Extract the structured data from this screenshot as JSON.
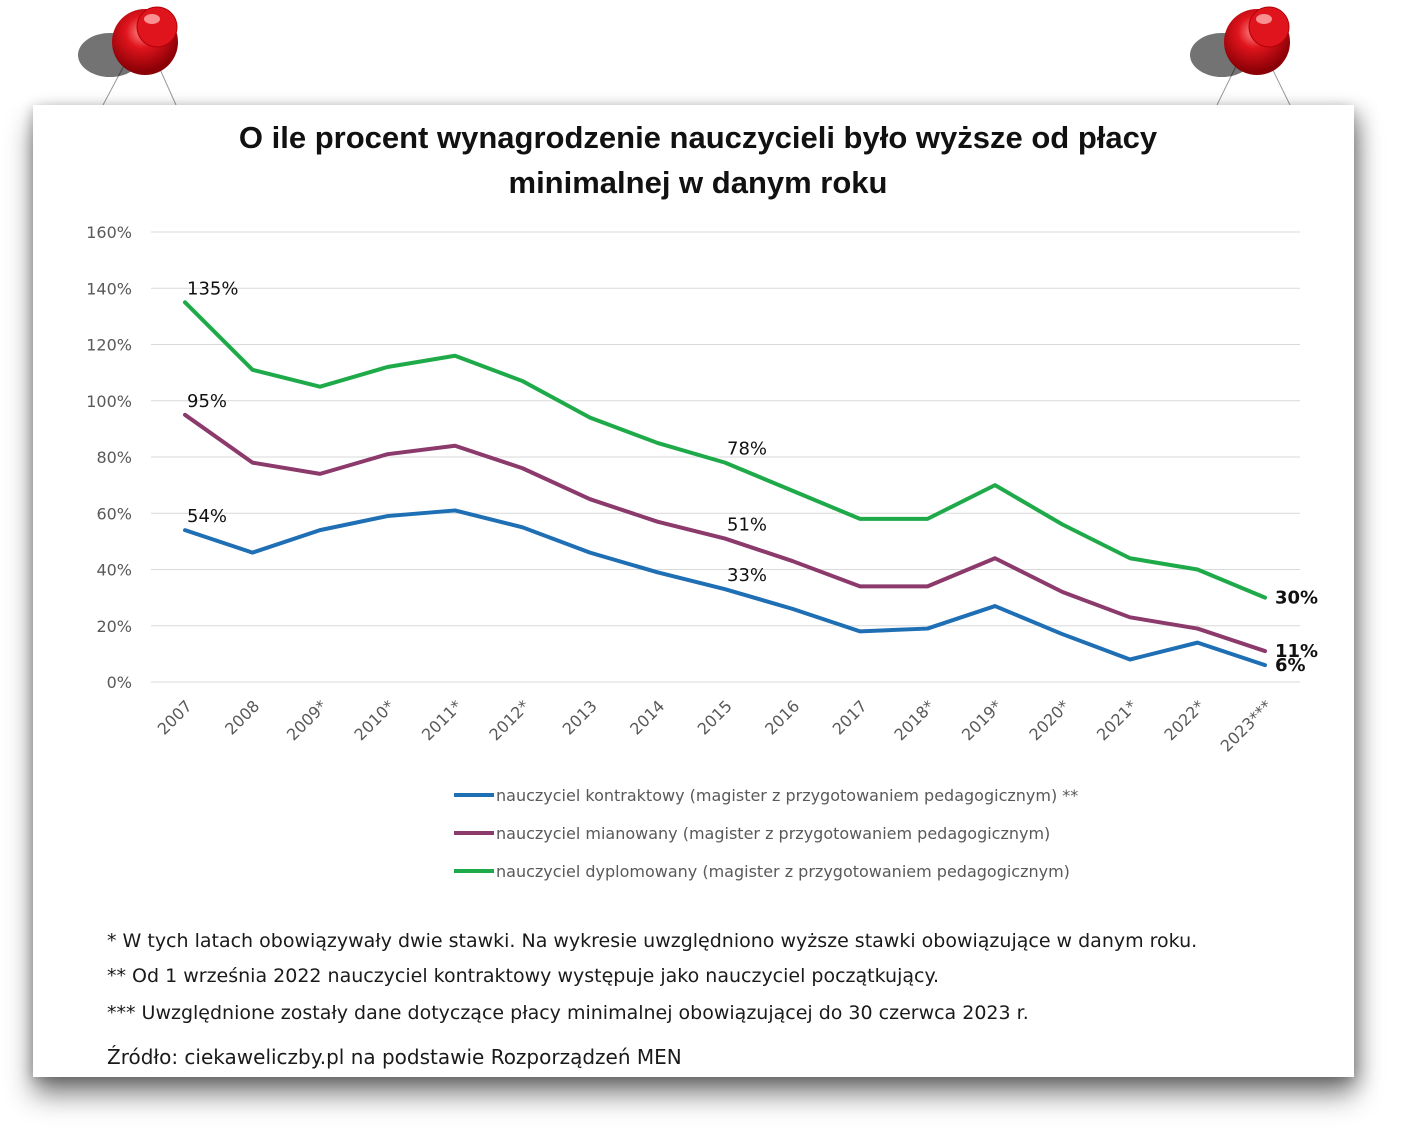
{
  "chart_data": {
    "type": "line",
    "title_lines": [
      "O ile procent wynagrodzenie nauczycieli było wyższe od płacy",
      "minimalnej w danym roku"
    ],
    "categories": [
      "2007",
      "2008",
      "2009*",
      "2010*",
      "2011*",
      "2012*",
      "2013",
      "2014",
      "2015",
      "2016",
      "2017",
      "2018*",
      "2019*",
      "2020*",
      "2021*",
      "2022*",
      "2023***"
    ],
    "y_ticks": [
      "0%",
      "20%",
      "40%",
      "60%",
      "80%",
      "100%",
      "120%",
      "140%",
      "160%"
    ],
    "ylim": [
      0,
      160
    ],
    "grid": true,
    "legend_position": "bottom",
    "series": [
      {
        "name": "nauczyciel kontraktowy (magister z przygotowaniem pedagogicznym) **",
        "color": "#1f6fb5",
        "values": [
          54,
          46,
          54,
          59,
          61,
          55,
          46,
          39,
          33,
          26,
          18,
          19,
          27,
          17,
          8,
          14,
          6
        ]
      },
      {
        "name": "nauczyciel mianowany (magister z przygotowaniem pedagogicznym)",
        "color": "#8b3a6b",
        "values": [
          95,
          78,
          74,
          81,
          84,
          76,
          65,
          57,
          51,
          43,
          34,
          34,
          44,
          32,
          23,
          19,
          11
        ]
      },
      {
        "name": "nauczyciel dyplomowany (magister z przygotowaniem pedagogicznym)",
        "color": "#1faa4a",
        "values": [
          135,
          111,
          105,
          112,
          116,
          107,
          94,
          85,
          78,
          68,
          58,
          58,
          70,
          56,
          44,
          40,
          30
        ]
      }
    ],
    "annotations": [
      {
        "text": "135%",
        "series": 2,
        "index": 0,
        "bold": false
      },
      {
        "text": "95%",
        "series": 1,
        "index": 0,
        "bold": false
      },
      {
        "text": "54%",
        "series": 0,
        "index": 0,
        "bold": false
      },
      {
        "text": "78%",
        "series": 2,
        "index": 8,
        "bold": false
      },
      {
        "text": "51%",
        "series": 1,
        "index": 8,
        "bold": false
      },
      {
        "text": "33%",
        "series": 0,
        "index": 8,
        "bold": false
      },
      {
        "text": "30%",
        "series": 2,
        "index": 16,
        "bold": true
      },
      {
        "text": "11%",
        "series": 1,
        "index": 16,
        "bold": true
      },
      {
        "text": "6%",
        "series": 0,
        "index": 16,
        "bold": true
      }
    ]
  },
  "footnotes": {
    "note1": "* W tych latach obowiązywały dwie stawki. Na wykresie uwzględniono wyższe stawki obowiązujące w danym roku.",
    "note2": "** Od 1 września 2022 nauczyciel kontraktowy występuje jako nauczyciel początkujący.",
    "note3": "*** Uwzględnione zostały dane dotyczące płacy minimalnej obowiązującej do 30 czerwca 2023 r.",
    "source": "Źródło: ciekaweliczby.pl na podstawie Rozporządzeń MEN"
  },
  "colors": {
    "pin": "#e0141c",
    "grid": "#d9d9d9",
    "axis_text": "#595959"
  }
}
